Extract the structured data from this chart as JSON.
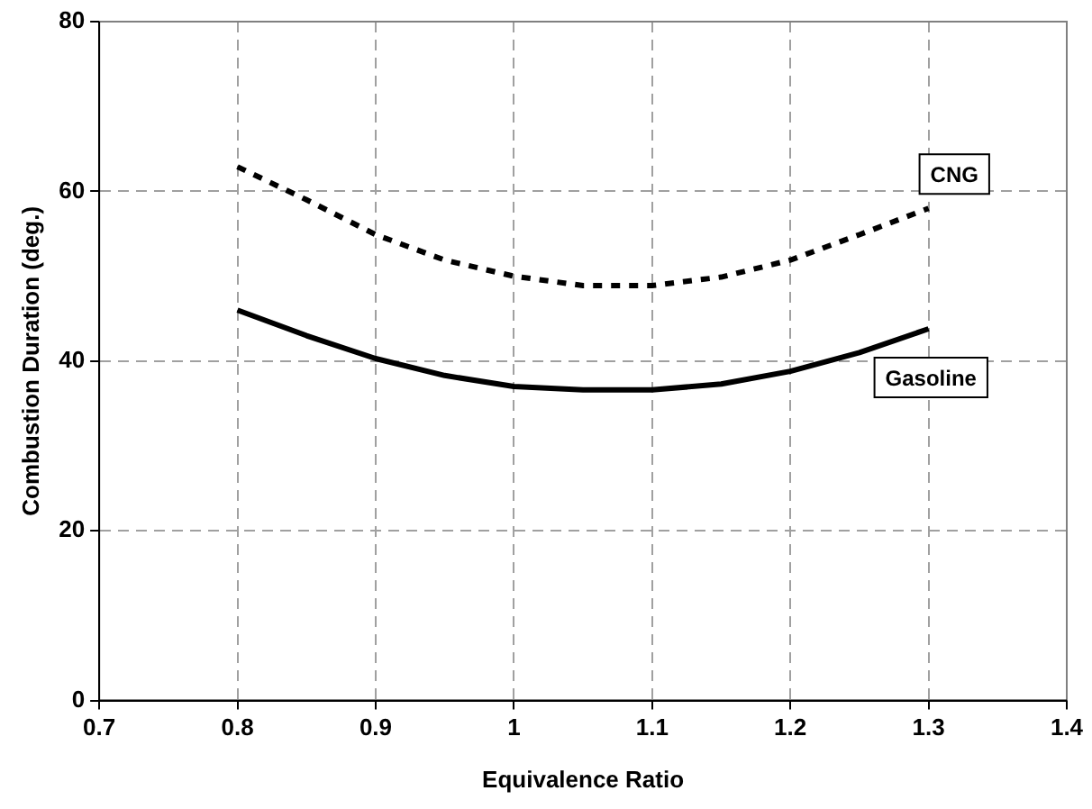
{
  "chart_data": {
    "type": "line",
    "xlabel": "Equivalence Ratio",
    "ylabel": "Combustion Duration (deg.)",
    "x": [
      0.8,
      0.85,
      0.9,
      0.95,
      1.0,
      1.05,
      1.1,
      1.15,
      1.2,
      1.25,
      1.3
    ],
    "series": [
      {
        "name": "CNG",
        "color": "#000000",
        "line_style": "dashed",
        "values": [
          62.9,
          59,
          54.9,
          51.9,
          50,
          48.9,
          48.9,
          49.9,
          51.9,
          54.9,
          58
        ]
      },
      {
        "name": "Gasoline",
        "color": "#000000",
        "line_style": "solid",
        "values": [
          46,
          43,
          40.3,
          38.3,
          37,
          36.6,
          36.6,
          37.3,
          38.8,
          41,
          43.8
        ]
      }
    ],
    "xlim": [
      0.7,
      1.4
    ],
    "xticks": [
      0.7,
      0.8,
      0.9,
      1,
      1.1,
      1.2,
      1.3,
      1.4
    ],
    "ylim": [
      0,
      80
    ],
    "yticks": [
      0,
      20,
      40,
      60,
      80
    ],
    "grid": true,
    "legend": false,
    "marker": "none"
  }
}
